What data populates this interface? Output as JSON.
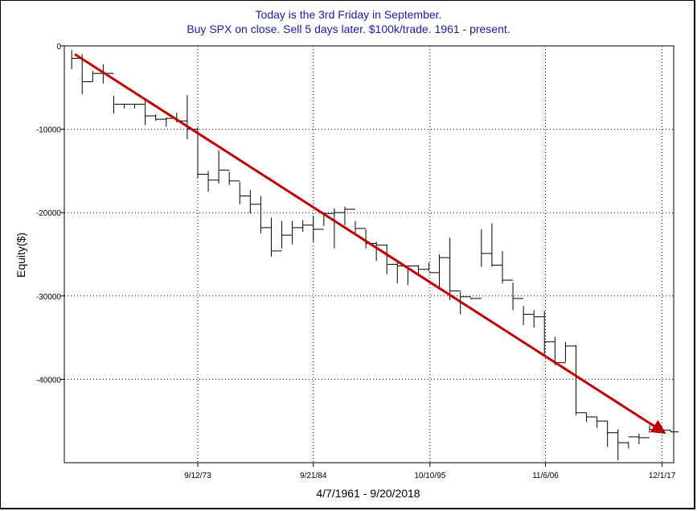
{
  "chart_data": {
    "type": "line",
    "title": "Today is the 3rd Friday in September.",
    "subtitle": "Buy SPX on close. Sell 5 days later. $100k/trade. 1961 - present.",
    "xlabel": "4/7/1961 - 9/20/2018",
    "ylabel": "Equity($)",
    "xlim": [
      1961,
      2019
    ],
    "ylim": [
      -50000,
      0
    ],
    "yticks": [
      0,
      -10000,
      -20000,
      -30000,
      -40000
    ],
    "ytick_labels": [
      "0",
      "-10000",
      "-20000",
      "-30000",
      "-40000"
    ],
    "xticks": [
      1973.7,
      1984.7,
      1995.8,
      2006.8,
      2017.9
    ],
    "xtick_labels": [
      "9/12/73",
      "9/21/84",
      "10/10/95",
      "11/6/06",
      "12/1/17"
    ],
    "grid": true,
    "colors": {
      "title": "#1a1ab0",
      "trend": "#c00000",
      "series": "#000000"
    },
    "series": [
      {
        "style": "hloc-step",
        "x": [
          1961.7,
          1962.7,
          1963.7,
          1964.7,
          1965.7,
          1966.7,
          1967.7,
          1968.7,
          1969.7,
          1970.7,
          1971.7,
          1972.7,
          1973.7,
          1974.7,
          1975.7,
          1976.7,
          1977.7,
          1978.7,
          1979.7,
          1980.7,
          1981.7,
          1982.7,
          1983.7,
          1984.7,
          1985.7,
          1986.7,
          1987.7,
          1988.7,
          1989.7,
          1990.7,
          1991.7,
          1992.7,
          1993.7,
          1994.7,
          1995.7,
          1996.7,
          1997.7,
          1998.7,
          1999.7,
          2000.7,
          2001.7,
          2002.7,
          2003.7,
          2004.7,
          2005.7,
          2006.7,
          2007.7,
          2008.7,
          2009.7,
          2010.7,
          2011.7,
          2012.7,
          2013.7,
          2014.7,
          2015.7,
          2016.7,
          2017.7,
          2018.7
        ],
        "high": [
          -500,
          -1000,
          -3000,
          -2200,
          -6000,
          -7000,
          -7000,
          -6400,
          -8200,
          -8600,
          -8000,
          -5900,
          -9800,
          -15000,
          -12500,
          -15100,
          -16300,
          -17300,
          -18000,
          -20600,
          -21000,
          -21000,
          -20900,
          -20400,
          -20000,
          -19500,
          -19300,
          -21000,
          -22000,
          -23500,
          -23800,
          -26000,
          -26500,
          -26300,
          -26000,
          -25000,
          -23000,
          -29500,
          -30200,
          -22000,
          -21300,
          -24600,
          -28400,
          -31200,
          -31700,
          -31800,
          -34900,
          -35500,
          -35900,
          -44000,
          -44500,
          -45000,
          -46000,
          -47500,
          -46500,
          -45500,
          -46000,
          -46100
        ],
        "low": [
          -2800,
          -5800,
          -4300,
          -4500,
          -8100,
          -7500,
          -7500,
          -9500,
          -9000,
          -9700,
          -9200,
          -11200,
          -15900,
          -17500,
          -16500,
          -16700,
          -19000,
          -20100,
          -22500,
          -25300,
          -24300,
          -23800,
          -22300,
          -23500,
          -21600,
          -24300,
          -21500,
          -22700,
          -24300,
          -25800,
          -27400,
          -28500,
          -28700,
          -27500,
          -27000,
          -29200,
          -30500,
          -32200,
          -30400,
          -26500,
          -26500,
          -28500,
          -31700,
          -33500,
          -33800,
          -37200,
          -38300,
          -37900,
          -44300,
          -45100,
          -45800,
          -48100,
          -49700,
          -48300,
          -47800,
          -46400,
          -46400,
          -46300
        ],
        "close": [
          -1500,
          -4300,
          -3300,
          -3300,
          -7000,
          -7000,
          -7000,
          -8400,
          -8800,
          -8700,
          -9000,
          -10000,
          -15400,
          -16100,
          -14900,
          -16200,
          -18000,
          -19000,
          -21800,
          -24600,
          -22700,
          -21800,
          -21500,
          -22000,
          -20100,
          -20000,
          -19600,
          -21900,
          -23700,
          -23900,
          -26200,
          -26400,
          -26400,
          -26800,
          -27200,
          -25400,
          -29400,
          -30100,
          -30300,
          -24900,
          -26300,
          -28100,
          -30300,
          -32200,
          -32500,
          -35500,
          -38000,
          -36000,
          -44000,
          -44500,
          -45000,
          -46400,
          -47600,
          -46900,
          -47000,
          -46000,
          -46100,
          -46300
        ]
      }
    ],
    "trendline": {
      "x": [
        1962.0,
        2018.0
      ],
      "y": [
        -1000,
        -46300
      ]
    }
  }
}
